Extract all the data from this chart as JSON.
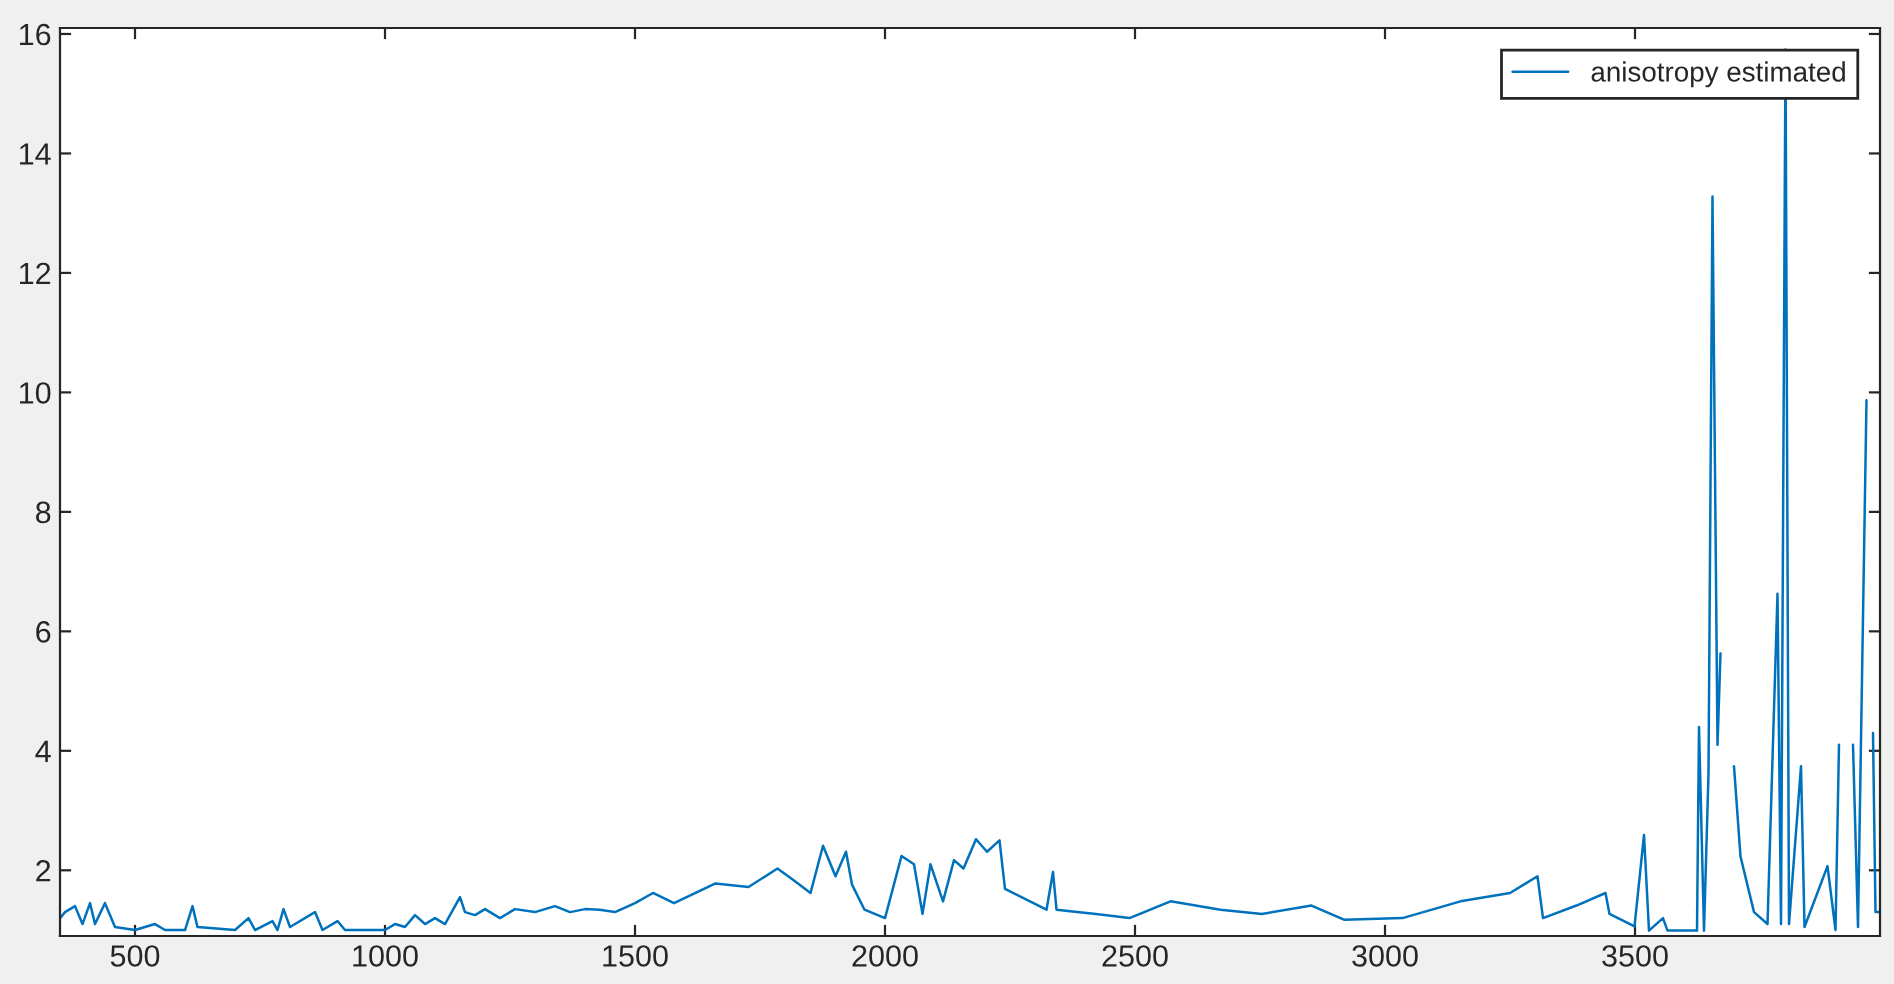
{
  "chart_data": {
    "type": "line",
    "xlim": [
      350,
      3990
    ],
    "ylim": [
      0.9,
      16.1
    ],
    "xticks": [
      500,
      1000,
      1500,
      2000,
      2500,
      3000,
      3500
    ],
    "yticks": [
      2,
      4,
      6,
      8,
      10,
      12,
      14,
      16
    ],
    "grid": false,
    "legend": "top right",
    "series": [
      {
        "name": "anisotropy estimated",
        "color": "#0072bd",
        "x": [
          350,
          360,
          380,
          395,
          410,
          420,
          440,
          460,
          500,
          540,
          560,
          600,
          615,
          625,
          700,
          727,
          740,
          775,
          785,
          797,
          810,
          860,
          875,
          905,
          920,
          960,
          1000,
          1020,
          1040,
          1060,
          1080,
          1100,
          1120,
          1140,
          1150,
          1160,
          1180,
          1200,
          1230,
          1260,
          1300,
          1340,
          1370,
          1400,
          1429,
          1460,
          1500,
          1536,
          1578,
          1661,
          1727,
          1785,
          1818,
          1851,
          1876,
          1901,
          1922,
          1934,
          1959,
          2000,
          2033,
          2058,
          2075,
          2091,
          2116,
          2138,
          2157,
          2182,
          2204,
          2229,
          2240,
          2290,
          2323,
          2336,
          2343,
          2422,
          2489,
          2571,
          2671,
          2754,
          2853,
          2919,
          3035,
          3151,
          3250,
          3305,
          3316,
          3383,
          3441,
          3449,
          3499,
          3518,
          3528,
          3556,
          3565,
          3624,
          3628,
          3638,
          3647,
          3655,
          3665,
          3671,
          3678,
          3698,
          3711,
          3738,
          3765,
          3785,
          3792,
          3801,
          3808,
          3832,
          3839,
          3885,
          3901,
          3908,
          3915,
          3936,
          3946,
          3963,
          3968,
          3976,
          3981,
          3989
        ],
        "values": [
          1.2,
          1.3,
          1.4,
          1.1,
          1.45,
          1.1,
          1.45,
          1.05,
          1.0,
          1.1,
          1.0,
          1.0,
          1.4,
          1.05,
          1.0,
          1.2,
          1.0,
          1.15,
          1.0,
          1.35,
          1.05,
          1.3,
          1.0,
          1.15,
          1.0,
          1.0,
          1.0,
          1.1,
          1.05,
          1.25,
          1.1,
          1.2,
          1.1,
          1.4,
          1.55,
          1.3,
          1.25,
          1.35,
          1.2,
          1.35,
          1.3,
          1.4,
          1.3,
          1.35,
          1.34,
          1.3,
          1.45,
          1.62,
          1.45,
          1.78,
          1.72,
          2.03,
          1.83,
          1.62,
          2.41,
          1.9,
          2.31,
          1.76,
          1.34,
          1.2,
          2.24,
          2.1,
          1.27,
          2.1,
          1.48,
          2.17,
          2.03,
          2.52,
          2.31,
          2.5,
          1.69,
          1.48,
          1.34,
          1.97,
          1.34,
          1.27,
          1.2,
          1.48,
          1.34,
          1.27,
          1.41,
          1.17,
          1.2,
          1.48,
          1.62,
          1.9,
          1.2,
          1.41,
          1.62,
          1.27,
          1.06,
          2.59,
          0.99,
          1.2,
          0.99,
          0.99,
          4.4,
          0.99,
          3.62,
          13.28,
          4.1,
          5.63,
          null,
          3.74,
          2.23,
          1.3,
          1.1,
          6.63,
          1.1,
          15.74,
          1.1,
          3.74,
          1.05,
          2.07,
          1.0,
          4.1,
          null,
          4.1,
          1.05,
          9.87,
          null,
          4.3,
          1.3,
          1.3
        ]
      }
    ]
  }
}
